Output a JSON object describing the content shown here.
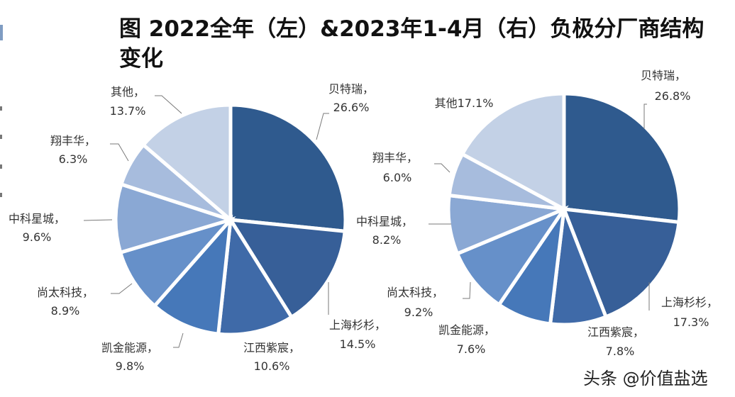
{
  "title": "图 2022全年（左）&2023年1-4月（右）负极分厂商结构变化",
  "title_line1": "图 2022全年（左）&2023年1-4月（右）负极分厂商结构",
  "title_line2": "变化",
  "watermark": "头条 @价值盐选",
  "colors": {
    "贝特瑞": "#2f5a8e",
    "上海杉杉": "#375f98",
    "江西紫宸": "#3f6aa8",
    "凯金能源": "#4678b9",
    "尚太科技": "#6690c9",
    "中科星城": "#8aa8d4",
    "翔丰华": "#a7bcdd",
    "其他": "#c3d1e6"
  },
  "chart_data": [
    {
      "type": "pie",
      "title": "2022全年（左）",
      "categories": [
        "贝特瑞",
        "上海杉杉",
        "江西紫宸",
        "凯金能源",
        "尚太科技",
        "中科星城",
        "翔丰华",
        "其他"
      ],
      "values": [
        26.6,
        14.5,
        10.6,
        9.8,
        8.9,
        9.6,
        6.3,
        13.7
      ],
      "labels": [
        "贝特瑞，26.6%",
        "上海杉杉，14.5%",
        "江西紫宸，10.6%",
        "凯金能源，9.8%",
        "尚太科技，8.9%",
        "中科星城，9.6%",
        "翔丰华，6.3%",
        "其他，13.7%"
      ],
      "unit": "%",
      "start_angle": "12 o'clock, clockwise"
    },
    {
      "type": "pie",
      "title": "2023年1-4月（右）",
      "categories": [
        "贝特瑞",
        "上海杉杉",
        "江西紫宸",
        "凯金能源",
        "尚太科技",
        "中科星城",
        "翔丰华",
        "其他"
      ],
      "values": [
        26.8,
        17.3,
        7.8,
        7.6,
        9.2,
        8.2,
        6.0,
        17.1
      ],
      "labels": [
        "贝特瑞，26.8%",
        "上海杉杉，17.3%",
        "江西紫宸，7.8%",
        "凯金能源，7.6%",
        "尚太科技，9.2%",
        "中科星城，8.2%",
        "翔丰华，6.0%",
        "其他17.1%"
      ],
      "unit": "%",
      "start_angle": "12 o'clock, clockwise"
    }
  ],
  "left_labels": [
    {
      "name": "贝特瑞，",
      "value": "26.6%"
    },
    {
      "name": "上海杉杉，",
      "value": "14.5%"
    },
    {
      "name": "江西紫宸，",
      "value": "10.6%"
    },
    {
      "name": "凯金能源，",
      "value": "9.8%"
    },
    {
      "name": "尚太科技，",
      "value": "8.9%"
    },
    {
      "name": "中科星城，",
      "value": "9.6%"
    },
    {
      "name": "翔丰华，",
      "value": "6.3%"
    },
    {
      "name": "其他，",
      "value": "13.7%"
    }
  ],
  "right_labels": [
    {
      "name": "贝特瑞，",
      "value": "26.8%"
    },
    {
      "name": "上海杉杉，",
      "value": "17.3%"
    },
    {
      "name": "江西紫宸，",
      "value": "7.8%"
    },
    {
      "name": "凯金能源，",
      "value": "7.6%"
    },
    {
      "name": "尚太科技，",
      "value": "9.2%"
    },
    {
      "name": "中科星城，",
      "value": "8.2%"
    },
    {
      "name": "翔丰华，",
      "value": "6.0%"
    },
    {
      "name": "其他17.1%",
      "value": ""
    }
  ]
}
